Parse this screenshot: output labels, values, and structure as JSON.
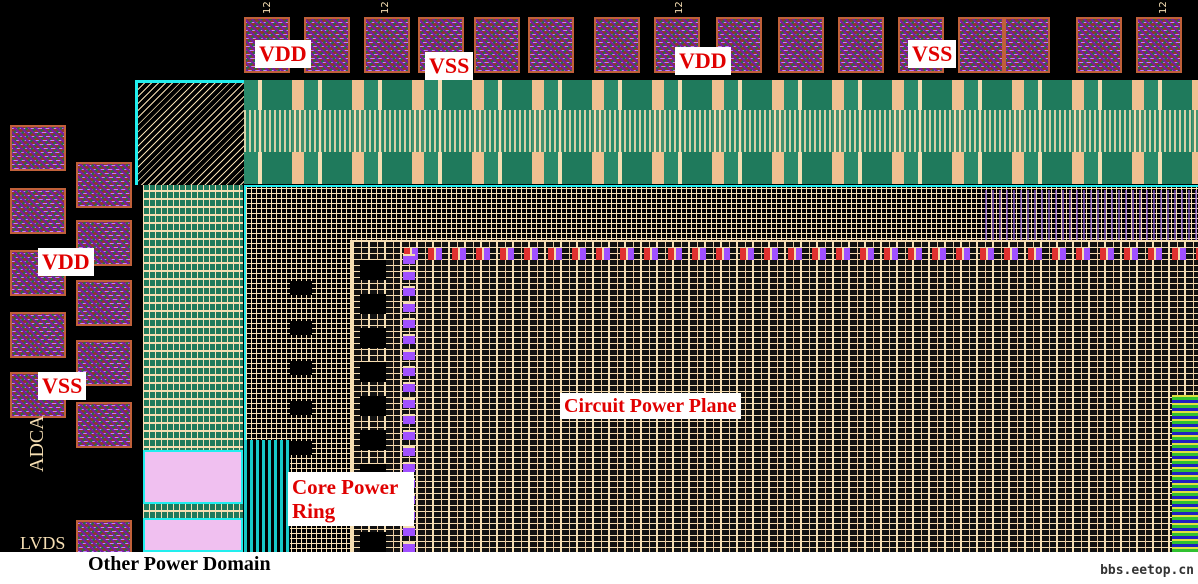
{
  "labels": {
    "vdd_top_1": "VDD",
    "vss_top_1": "VSS",
    "vdd_top_2": "VDD",
    "vss_top_2": "VSS",
    "vdd_left": "VDD",
    "vss_left": "VSS",
    "circuit_power_plane": "Circuit Power Plane",
    "core_power_ring_line1": "Core Power",
    "core_power_ring_line2": "Ring",
    "other_power_domain": "Other Power Domain"
  },
  "layout_text": {
    "adca": "ADCA",
    "lvds": "LVDS",
    "pad_number": "12"
  },
  "watermark": "bbs.eetop.cn",
  "colors": {
    "background": "#000000",
    "label_text": "#e00000",
    "metal_beige": "#f5deb3",
    "io_green": "#1f7a5c",
    "ring_cyan": "#18c8c8",
    "pad_purple": "#7a1aa0"
  }
}
